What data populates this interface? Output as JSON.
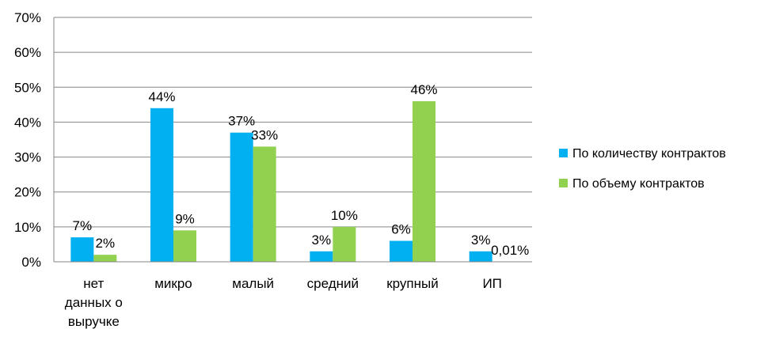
{
  "chart_data": {
    "type": "bar",
    "categories": [
      [
        "нет",
        "данных о",
        "выручке"
      ],
      [
        "микро"
      ],
      [
        "малый"
      ],
      [
        "средний"
      ],
      [
        "крупный"
      ],
      [
        "ИП"
      ]
    ],
    "series": [
      {
        "name": "По количеству контрактов",
        "color": "#00B0F0",
        "values": [
          7,
          44,
          37,
          3,
          6,
          3
        ],
        "labels": [
          "7%",
          "44%",
          "37%",
          "3%",
          "6%",
          "3%"
        ]
      },
      {
        "name": "По объему контрактов",
        "color": "#92D050",
        "values": [
          2,
          9,
          33,
          10,
          46,
          0.01
        ],
        "labels": [
          "2%",
          "9%",
          "33%",
          "10%",
          "46%",
          "0,01%"
        ]
      }
    ],
    "ylim": [
      0,
      70
    ],
    "yticks": [
      0,
      10,
      20,
      30,
      40,
      50,
      60,
      70
    ],
    "ytick_labels": [
      "0%",
      "10%",
      "20%",
      "30%",
      "40%",
      "50%",
      "60%",
      "70%"
    ],
    "grid": true,
    "legend": "right",
    "title": "",
    "xlabel": "",
    "ylabel": ""
  }
}
